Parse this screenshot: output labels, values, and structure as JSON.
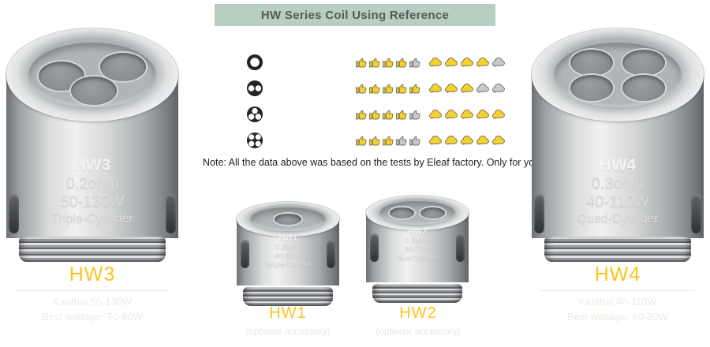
{
  "banner": {
    "title": "HW Series Coil Using Reference",
    "bg_color": "#b7cec3",
    "text_color": "#58595b"
  },
  "reference_table": {
    "colors": {
      "filled": "#f4d22c",
      "empty": "#c9c9c9",
      "outline": "#4e4e4e"
    },
    "rows": [
      {
        "coil": "single-cylinder",
        "cylinders": 1,
        "thumbs_filled": 4,
        "thumbs_total": 5,
        "clouds_filled": 4,
        "clouds_total": 5
      },
      {
        "coil": "dual-cylinder",
        "cylinders": 2,
        "thumbs_filled": 5,
        "thumbs_total": 5,
        "clouds_filled": 3,
        "clouds_total": 5
      },
      {
        "coil": "triple-cylinder",
        "cylinders": 3,
        "thumbs_filled": 4,
        "thumbs_total": 5,
        "clouds_filled": 5,
        "clouds_total": 5
      },
      {
        "coil": "quad-cylinder",
        "cylinders": 4,
        "thumbs_filled": 3,
        "thumbs_total": 5,
        "clouds_filled": 5,
        "clouds_total": 5
      }
    ]
  },
  "note": {
    "text": "Note: All the data above was based on the tests by Eleaf factory. Only for your reference."
  },
  "products": {
    "hw3": {
      "name": "HW3",
      "resistance": "0.2ohm",
      "wattage": "50-130W",
      "type": "Triple-Cylinder",
      "label": "HW3",
      "spec_line1": "Kanthal  50-130W",
      "spec_line2": "Best wattage: 70-90W"
    },
    "hw4": {
      "name": "HW4",
      "resistance": "0.3ohm",
      "wattage": "40-110W",
      "type": "Quad-Cylinder",
      "label": "HW4",
      "spec_line1": "Kanthal  40-110W",
      "spec_line2": "Best wattage: 60-80W"
    },
    "hw1": {
      "name": "HW1",
      "resistance": "0.2ohm",
      "wattage": "40-80W",
      "type": "Single-Cylinder",
      "label": "HW1",
      "sub_label": "(optional accessory)"
    },
    "hw2": {
      "name": "HW2",
      "resistance": "0.3ohm",
      "wattage": "30-70W",
      "type": "Dual-Cylinder",
      "label": "HW2",
      "sub_label": "(optional accessory)"
    }
  },
  "colors": {
    "accent_yellow": "#fdc41f",
    "faint_text": "#efece6",
    "divider": "#eceae5"
  }
}
